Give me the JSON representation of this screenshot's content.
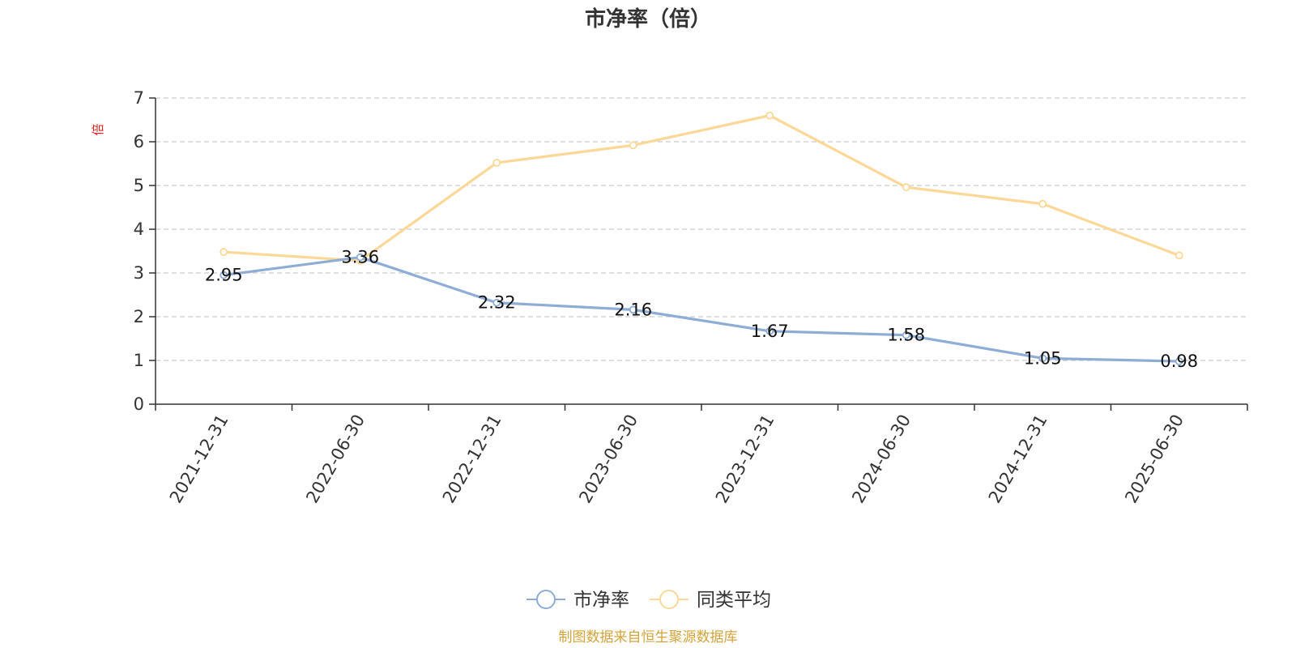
{
  "chart_data": {
    "type": "line",
    "title": "市净率（倍）",
    "ylabel": "倍",
    "ylim": [
      0,
      7
    ],
    "yticks": [
      0,
      1,
      2,
      3,
      4,
      5,
      6,
      7
    ],
    "grid": true,
    "legend_position": "bottom-center",
    "categories": [
      "2021-12-31",
      "2022-06-30",
      "2022-12-31",
      "2023-06-30",
      "2023-12-31",
      "2024-06-30",
      "2024-12-31",
      "2025-06-30"
    ],
    "series": [
      {
        "name": "市净率",
        "color": "#8eadd6",
        "values": [
          2.95,
          3.36,
          2.32,
          2.16,
          1.67,
          1.58,
          1.05,
          0.98
        ],
        "labels": [
          "2.95",
          "3.36",
          "2.32",
          "2.16",
          "1.67",
          "1.58",
          "1.05",
          "0.98"
        ]
      },
      {
        "name": "同类平均",
        "color": "#fbd897",
        "values": [
          3.48,
          3.28,
          5.52,
          5.92,
          6.6,
          4.96,
          4.58,
          3.4
        ]
      }
    ],
    "source": "制图数据来自恒生聚源数据库"
  }
}
